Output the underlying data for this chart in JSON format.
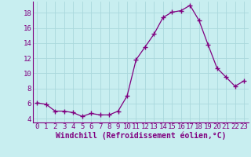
{
  "x": [
    0,
    1,
    2,
    3,
    4,
    5,
    6,
    7,
    8,
    9,
    10,
    11,
    12,
    13,
    14,
    15,
    16,
    17,
    18,
    19,
    20,
    21,
    22,
    23
  ],
  "y": [
    6.1,
    5.9,
    5.0,
    5.0,
    4.8,
    4.3,
    4.7,
    4.5,
    4.5,
    5.0,
    7.0,
    11.8,
    13.5,
    15.2,
    17.4,
    18.1,
    18.3,
    19.0,
    17.0,
    13.8,
    10.7,
    9.5,
    8.3,
    9.0
  ],
  "line_color": "#800080",
  "marker": "+",
  "marker_size": 4,
  "bg_color": "#c8eef0",
  "grid_color": "#aad8dc",
  "xlabel": "Windchill (Refroidissement éolien,°C)",
  "xlim": [
    -0.5,
    23.5
  ],
  "ylim": [
    3.5,
    19.5
  ],
  "xticks": [
    0,
    1,
    2,
    3,
    4,
    5,
    6,
    7,
    8,
    9,
    10,
    11,
    12,
    13,
    14,
    15,
    16,
    17,
    18,
    19,
    20,
    21,
    22,
    23
  ],
  "yticks": [
    4,
    6,
    8,
    10,
    12,
    14,
    16,
    18
  ],
  "xlabel_fontsize": 7.0,
  "tick_fontsize": 6.5,
  "label_color": "#800080",
  "spine_color": "#800080"
}
